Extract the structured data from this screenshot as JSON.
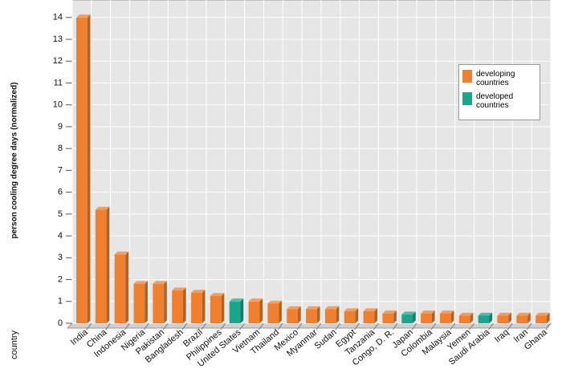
{
  "chart_data": {
    "type": "bar",
    "y_label": "person cooling degree days (normalized)",
    "x_label": "country",
    "categories": [
      "India",
      "China",
      "Indonesia",
      "Nigeria",
      "Pakistan",
      "Bangladesh",
      "Brazil",
      "Philippines",
      "United States",
      "Vietnam",
      "Thailand",
      "Mexico",
      "Myanmar",
      "Sudan",
      "Egypt",
      "Tanzania",
      "Congo, D. R.",
      "Japan",
      "Colombia",
      "Malaysia",
      "Yemen",
      "Saudi Arabia",
      "Iraq",
      "Iran",
      "Ghana"
    ],
    "series": [
      {
        "name": "developing countries",
        "color": "#f0802e",
        "values": [
          14.0,
          5.2,
          3.15,
          1.8,
          1.8,
          1.5,
          1.4,
          1.25,
          null,
          1.0,
          0.9,
          0.65,
          0.65,
          0.65,
          0.55,
          0.55,
          0.45,
          null,
          0.45,
          0.45,
          0.35,
          null,
          0.35,
          0.35,
          0.35
        ]
      },
      {
        "name": "developed countries",
        "color": "#1aa58c",
        "values": [
          null,
          null,
          null,
          null,
          null,
          null,
          null,
          null,
          1.0,
          null,
          null,
          null,
          null,
          null,
          null,
          null,
          null,
          0.4,
          null,
          null,
          null,
          0.35,
          null,
          null,
          null
        ]
      }
    ],
    "ylim": [
      0,
      14.8
    ],
    "yticks": [
      0,
      1,
      2,
      3,
      4,
      5,
      6,
      7,
      8,
      9,
      10,
      11,
      12,
      13,
      14
    ],
    "grid": true
  }
}
